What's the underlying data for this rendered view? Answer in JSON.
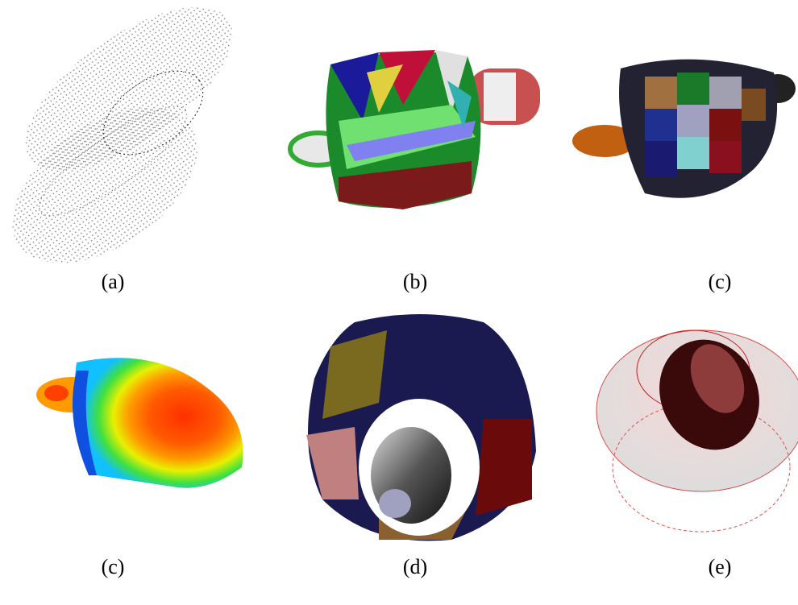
{
  "panels": [
    {
      "label": "(a)"
    },
    {
      "label": "(b)"
    },
    {
      "label": "(c)"
    },
    {
      "label": "(c)"
    },
    {
      "label": "(d)"
    },
    {
      "label": "(e)"
    }
  ]
}
